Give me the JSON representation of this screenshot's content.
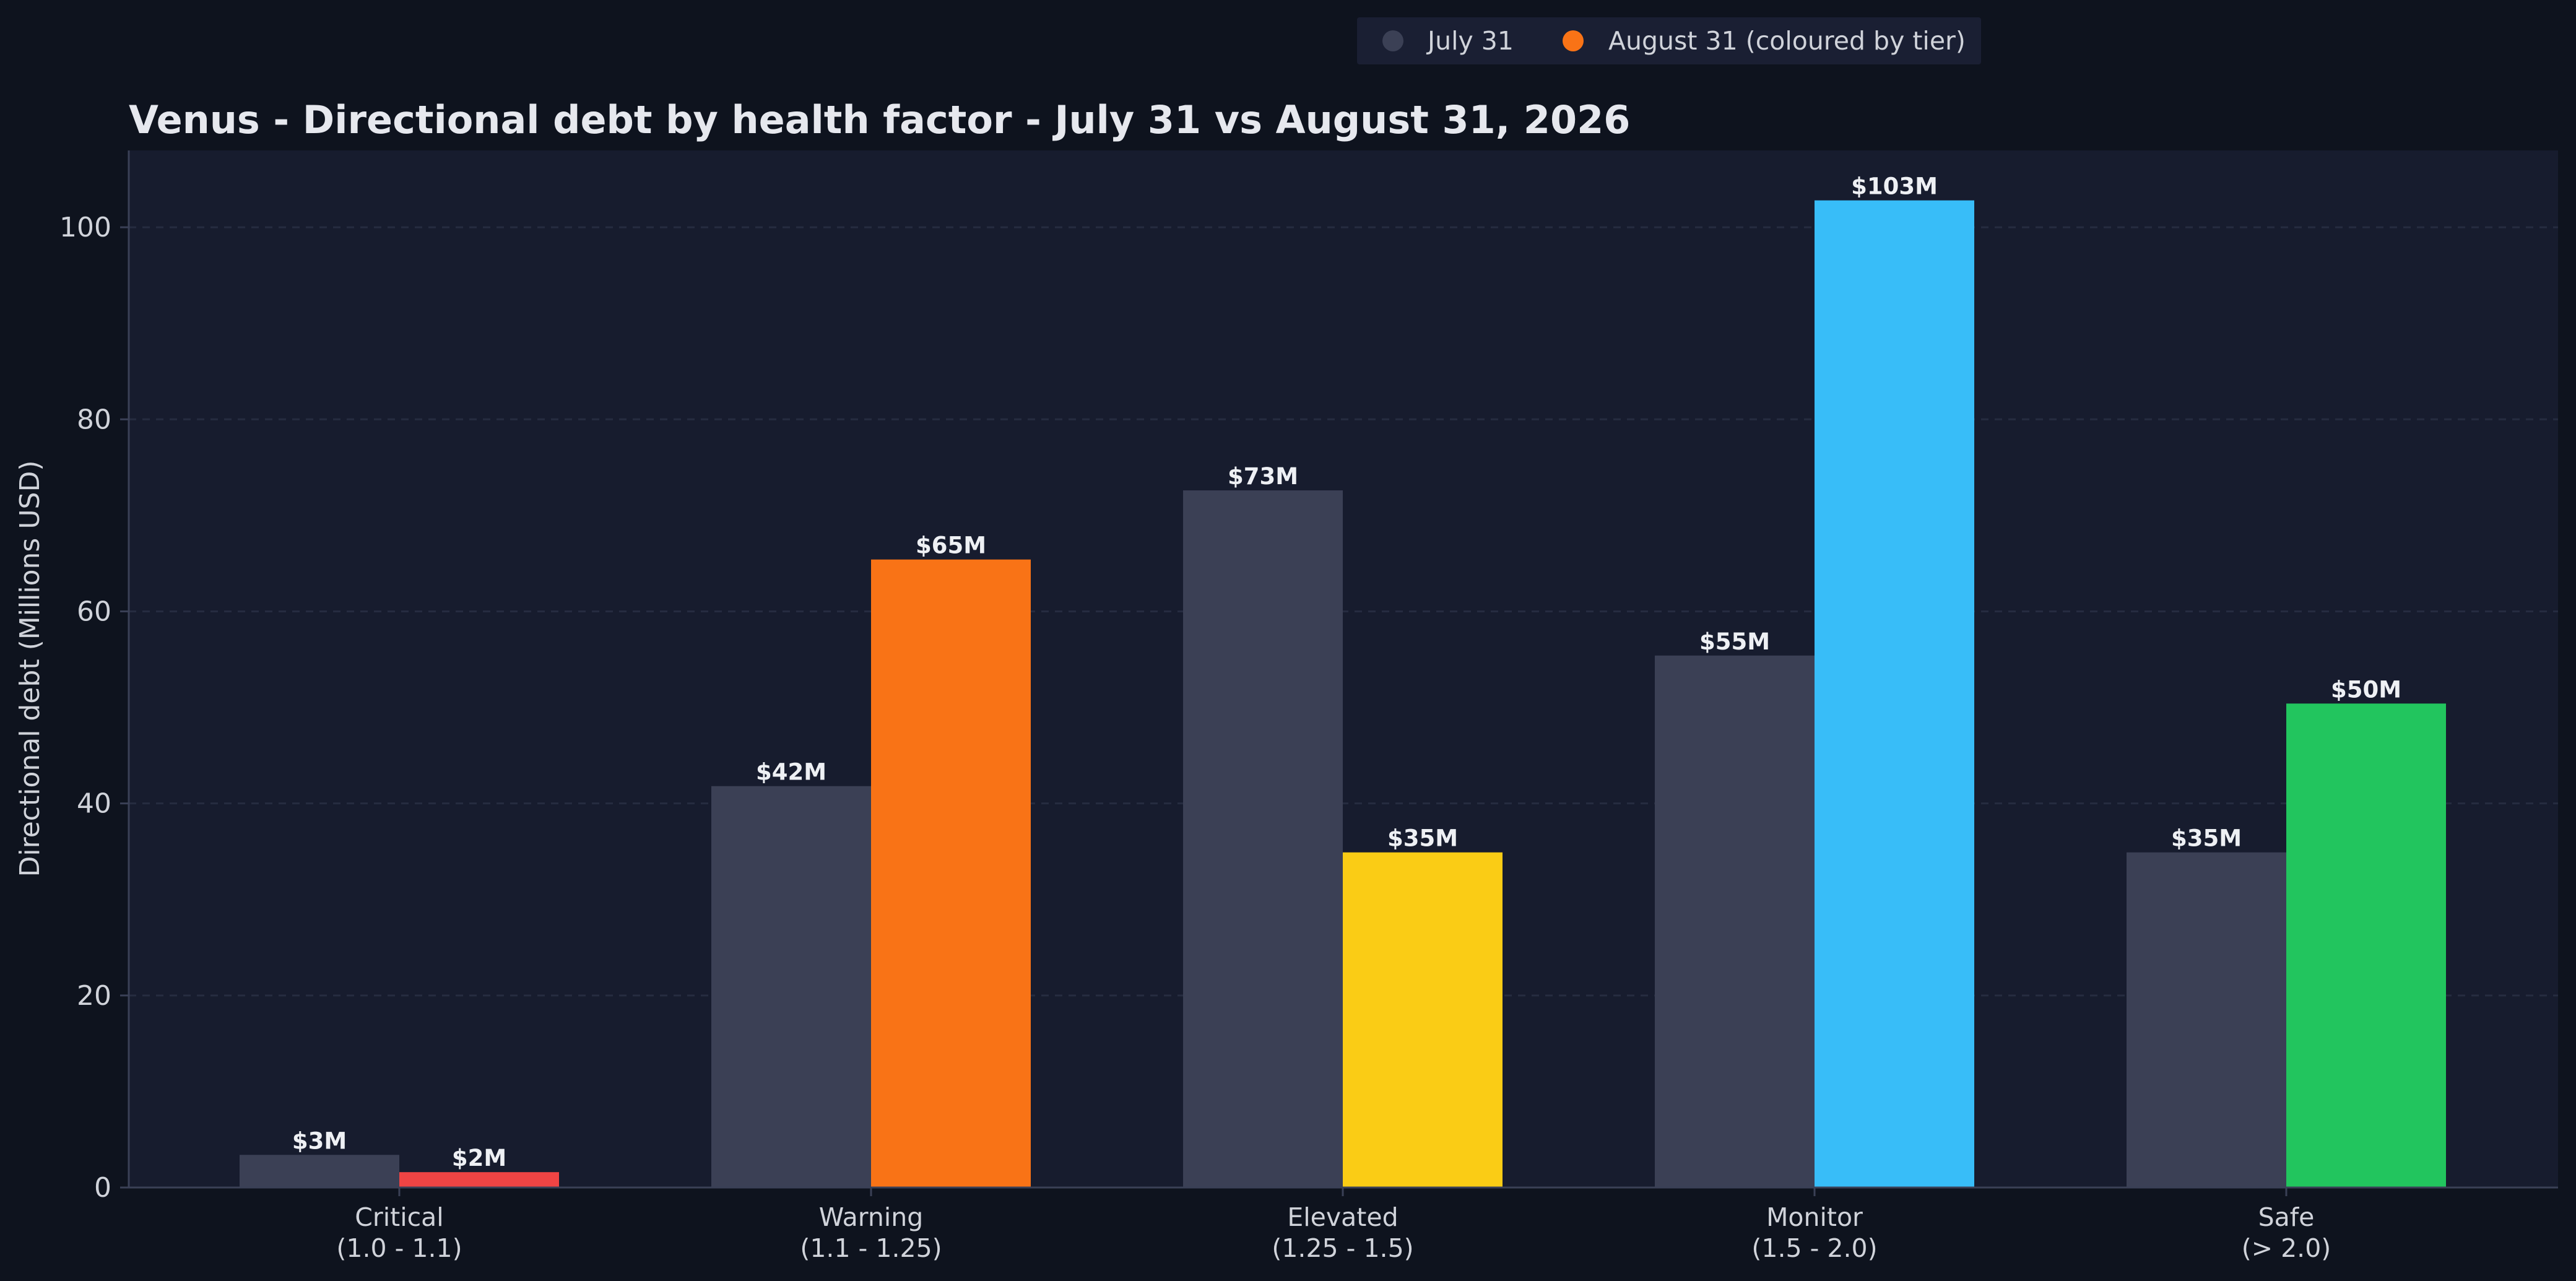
{
  "chart_data": {
    "type": "bar",
    "title": "Venus - Directional debt by health factor - July 31 vs August 31, 2026",
    "xlabel": "",
    "ylabel": "Directional debt (Millions USD)",
    "ylim": [
      0,
      108
    ],
    "yticks": [
      0,
      20,
      40,
      60,
      80,
      100
    ],
    "grid": "horizontal dashed",
    "legend_placement": "top-center",
    "categories": [
      {
        "name": "Critical",
        "range": "(1.0 - 1.1)"
      },
      {
        "name": "Warning",
        "range": "(1.1 - 1.25)"
      },
      {
        "name": "Elevated",
        "range": "(1.25 - 1.5)"
      },
      {
        "name": "Monitor",
        "range": "(1.5 - 2.0)"
      },
      {
        "name": "Safe",
        "range": "(> 2.0)"
      }
    ],
    "series": [
      {
        "name": "July 31",
        "color": "#3b4055",
        "values": [
          3.4,
          41.8,
          72.6,
          55.4,
          34.9
        ],
        "labels": [
          "$3M",
          "$42M",
          "$73M",
          "$55M",
          "$35M"
        ]
      },
      {
        "name": "August 31 (coloured by tier)",
        "legend_color": "#f97316",
        "colors": [
          "#ef4444",
          "#f97316",
          "#facc15",
          "#38bdf8",
          "#22c55e"
        ],
        "values": [
          1.6,
          65.4,
          34.9,
          102.8,
          50.4
        ],
        "labels": [
          "$2M",
          "$65M",
          "$35M",
          "$103M",
          "$50M"
        ]
      }
    ]
  },
  "colors": {
    "background": "#0e131e",
    "plot_background": "#171c2e",
    "gridline": "#262c40",
    "axis": "#3a4056"
  }
}
